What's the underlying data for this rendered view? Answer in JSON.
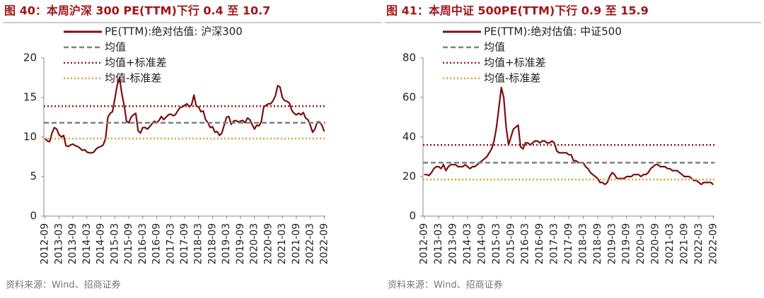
{
  "chart_data": [
    {
      "type": "line",
      "title": "图 40：本周沪深 300 PE(TTM)下行 0.4 至 10.7",
      "source": "资料来源：Wind、招商证券",
      "x": [
        "2012-09",
        null,
        null,
        null,
        null,
        null,
        "2013-03",
        null,
        null,
        null,
        null,
        null,
        "2013-09",
        null,
        null,
        null,
        null,
        null,
        "2014-03",
        null,
        null,
        null,
        null,
        null,
        "2014-09",
        null,
        null,
        null,
        null,
        null,
        "2015-03",
        null,
        null,
        null,
        null,
        null,
        "2015-09",
        null,
        null,
        null,
        null,
        null,
        "2016-03",
        null,
        null,
        null,
        null,
        null,
        "2016-09",
        null,
        null,
        null,
        null,
        null,
        "2017-03",
        null,
        null,
        null,
        null,
        null,
        "2017-09",
        null,
        null,
        null,
        null,
        null,
        "2018-03",
        null,
        null,
        null,
        null,
        null,
        "2018-09",
        null,
        null,
        null,
        null,
        null,
        "2019-03",
        null,
        null,
        null,
        null,
        null,
        "2019-09",
        null,
        null,
        null,
        null,
        null,
        "2020-03",
        null,
        null,
        null,
        null,
        null,
        "2020-09",
        null,
        null,
        null,
        null,
        null,
        "2021-03",
        null,
        null,
        null,
        null,
        null,
        "2021-09",
        null,
        null,
        null,
        null,
        null,
        "2022-03",
        null,
        null,
        null,
        null,
        null,
        "2022-09"
      ],
      "series": [
        {
          "name": "PE(TTM):绝对估值: 沪深300",
          "color": "#7b0f0f",
          "values": [
            9.8,
            9.5,
            9.4,
            10.5,
            11.2,
            11.0,
            10.3,
            10.0,
            10.2,
            8.9,
            8.8,
            9.0,
            9.1,
            8.9,
            8.8,
            8.6,
            8.3,
            8.4,
            8.1,
            8.0,
            8.0,
            8.1,
            8.5,
            8.7,
            8.8,
            9.0,
            9.8,
            12.5,
            13.0,
            13.2,
            14.8,
            16.5,
            17.5,
            15.5,
            14.0,
            12.0,
            11.8,
            12.5,
            12.8,
            13.0,
            10.8,
            10.5,
            11.2,
            11.2,
            11.0,
            11.3,
            11.7,
            12.0,
            11.8,
            12.1,
            12.6,
            12.2,
            12.5,
            12.8,
            12.9,
            12.7,
            12.8,
            13.3,
            13.7,
            13.8,
            14.0,
            14.2,
            13.8,
            14.1,
            15.3,
            13.9,
            13.8,
            13.2,
            13.3,
            12.2,
            11.8,
            11.2,
            11.3,
            10.6,
            10.7,
            10.2,
            10.5,
            11.5,
            12.5,
            12.6,
            11.6,
            12.0,
            12.1,
            11.9,
            12.0,
            12.1,
            11.8,
            12.4,
            12.2,
            11.6,
            11.0,
            11.5,
            11.4,
            12.0,
            13.8,
            14.0,
            14.2,
            14.2,
            14.6,
            15.2,
            16.5,
            16.3,
            15.0,
            14.6,
            14.5,
            14.3,
            13.4,
            13.0,
            12.8,
            13.0,
            12.8,
            13.1,
            12.4,
            12.2,
            11.5,
            10.6,
            11.0,
            11.9,
            11.9,
            11.5,
            10.7
          ]
        },
        {
          "name": "均值",
          "color": "#808080",
          "style": "dashed",
          "value": 11.8
        },
        {
          "name": "均值+标准差",
          "color": "#9b1b1b",
          "style": "dotted",
          "value": 13.9
        },
        {
          "name": "均值-标准差",
          "color": "#d4a637",
          "style": "dotted",
          "value": 9.8
        }
      ],
      "ylim": [
        0,
        20
      ],
      "yticks": [
        0,
        5,
        10,
        15,
        20
      ]
    },
    {
      "type": "line",
      "title": "图 41：本周中证 500PE(TTM)下行 0.9 至 15.9",
      "source": "资料来源：Wind、招商证券",
      "x": [
        "2012-09",
        null,
        null,
        null,
        null,
        null,
        "2013-03",
        null,
        null,
        null,
        null,
        null,
        "2013-09",
        null,
        null,
        null,
        null,
        null,
        "2014-03",
        null,
        null,
        null,
        null,
        null,
        "2014-09",
        null,
        null,
        null,
        null,
        null,
        "2015-03",
        null,
        null,
        null,
        null,
        null,
        "2015-09",
        null,
        null,
        null,
        null,
        null,
        "2016-03",
        null,
        null,
        null,
        null,
        null,
        "2016-09",
        null,
        null,
        null,
        null,
        null,
        "2017-03",
        null,
        null,
        null,
        null,
        null,
        "2017-09",
        null,
        null,
        null,
        null,
        null,
        "2018-03",
        null,
        null,
        null,
        null,
        null,
        "2018-09",
        null,
        null,
        null,
        null,
        null,
        "2019-03",
        null,
        null,
        null,
        null,
        null,
        "2019-09",
        null,
        null,
        null,
        null,
        null,
        "2020-03",
        null,
        null,
        null,
        null,
        null,
        "2020-09",
        null,
        null,
        null,
        null,
        null,
        "2021-03",
        null,
        null,
        null,
        null,
        null,
        "2021-09",
        null,
        null,
        null,
        null,
        null,
        "2022-03",
        null,
        null,
        null,
        null,
        null,
        "2022-09"
      ],
      "series": [
        {
          "name": "PE(TTM):绝对估值: 中证500",
          "color": "#7b0f0f",
          "values": [
            21,
            21,
            20.5,
            22,
            24,
            25,
            25,
            24,
            26,
            23,
            25,
            26,
            26,
            26,
            25,
            25,
            25,
            26,
            25,
            24,
            25,
            25,
            26,
            27,
            28,
            29,
            30,
            32,
            34,
            38,
            45,
            55,
            65,
            60,
            45,
            36,
            40,
            44,
            45,
            46,
            35,
            34,
            37,
            37,
            36,
            37,
            38,
            38,
            37,
            38,
            38,
            37,
            37,
            38,
            37,
            33,
            32,
            32,
            32,
            32,
            31,
            31,
            28,
            28,
            27,
            27,
            27,
            25,
            24,
            22,
            21,
            20,
            19,
            17,
            17,
            16,
            17,
            20,
            22,
            21,
            19,
            19,
            19,
            19,
            20,
            20,
            20,
            21,
            21,
            21,
            20,
            21,
            21,
            22,
            24,
            25,
            26,
            26,
            25,
            25,
            25,
            24,
            24,
            23,
            23,
            23,
            22,
            21,
            20,
            20,
            20,
            19,
            18,
            18,
            17,
            16,
            17,
            17,
            17,
            17,
            15.9
          ]
        },
        {
          "name": "均值",
          "color": "#808080",
          "style": "dashed",
          "value": 27
        },
        {
          "name": "均值+标准差",
          "color": "#9b1b1b",
          "style": "dotted",
          "value": 36
        },
        {
          "name": "均值-标准差",
          "color": "#d4a637",
          "style": "dotted",
          "value": 18.5
        }
      ],
      "ylim": [
        0,
        80
      ],
      "yticks": [
        0,
        20,
        40,
        60,
        80
      ]
    }
  ]
}
